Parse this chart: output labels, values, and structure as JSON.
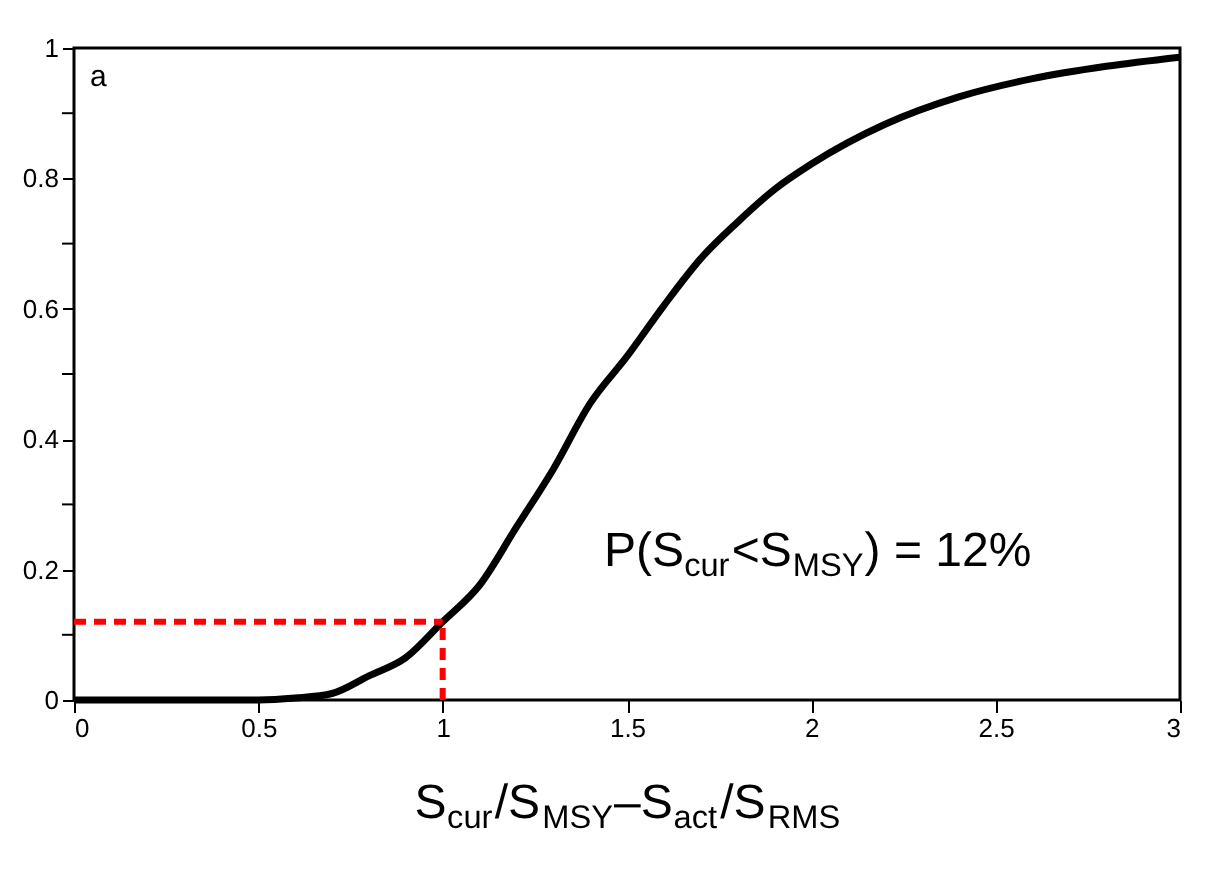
{
  "chart_data": {
    "type": "line",
    "xlabel": "S$_{cur}$/S$_{MSY}$–S$_{act}$/S$_{RMS}$",
    "annotations": [
      "a",
      "P(S$_{cur}$<S$_{MSY}$) = 12%"
    ],
    "x": [
      0,
      0.5,
      0.6,
      0.7,
      0.8,
      0.9,
      1.0,
      1.1,
      1.2,
      1.3,
      1.4,
      1.5,
      1.6,
      1.7,
      1.8,
      1.9,
      2.0,
      2.2,
      2.4,
      2.6,
      2.8,
      3.0
    ],
    "series": [
      {
        "color": "#000000",
        "values": [
          0,
          0,
          0.003,
          0.01,
          0.037,
          0.065,
          0.12,
          0.176,
          0.265,
          0.354,
          0.455,
          0.527,
          0.605,
          0.677,
          0.733,
          0.783,
          0.822,
          0.883,
          0.925,
          0.953,
          0.972,
          0.986
        ]
      }
    ],
    "ref_lines": [
      {
        "axis": "y",
        "value": 0.12,
        "color": "#ff0000",
        "line_style": "dashed"
      },
      {
        "axis": "x",
        "value": 1,
        "color": "#ff0000",
        "line_style": "dashed"
      }
    ],
    "xlim": [
      0,
      3
    ],
    "ylim": [
      0,
      1
    ],
    "xticks": [
      0,
      0.5,
      1,
      1.5,
      2,
      2.5,
      3
    ],
    "yticks": [
      0,
      {
        "value": 0.1,
        "label": null
      },
      0.2,
      {
        "value": 0.3,
        "label": null
      },
      0.4,
      {
        "value": 0.5,
        "label": null
      },
      0.6,
      {
        "value": 0.7,
        "label": null
      },
      0.8,
      {
        "value": 0.9,
        "label": null
      },
      1
    ],
    "grid": false,
    "marker": "none",
    "line_style": "solid"
  }
}
